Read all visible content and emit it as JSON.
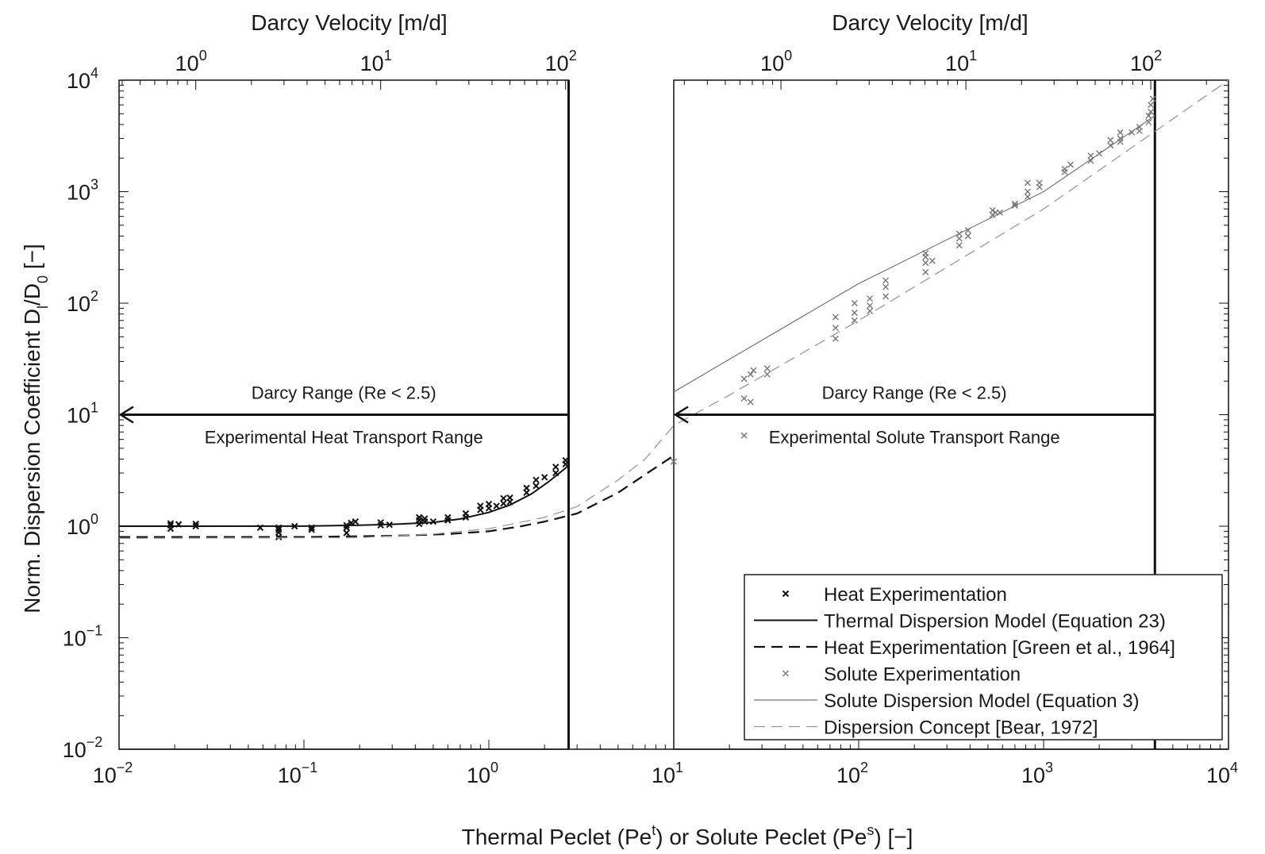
{
  "chart_data": {
    "type": "scatter",
    "x_scale": "log",
    "y_scale": "log",
    "xlabel": {
      "a": "Thermal Peclet (Pe",
      "a_sup": "t",
      "b": ") or Solute Peclet (Pe",
      "b_sup": "s",
      "c": ") [−]"
    },
    "ylabel": {
      "a": "Norm. Dispersion Coefficient D",
      "a_sub": "l",
      "b": "/D",
      "b_sub": "0",
      "c": " [−]"
    },
    "top_xlabel": "Darcy Velocity [m/d]",
    "xlim": [
      0.01,
      10000
    ],
    "ylim": [
      0.01,
      10000
    ],
    "x_ticks": [
      {
        "base": "10",
        "exp": "−2",
        "value": 0.01
      },
      {
        "base": "10",
        "exp": "−1",
        "value": 0.1
      },
      {
        "base": "10",
        "exp": "0",
        "value": 1
      },
      {
        "base": "10",
        "exp": "1",
        "value": 10
      },
      {
        "base": "10",
        "exp": "2",
        "value": 100
      },
      {
        "base": "10",
        "exp": "3",
        "value": 1000
      },
      {
        "base": "10",
        "exp": "4",
        "value": 10000
      }
    ],
    "y_ticks": [
      {
        "base": "10",
        "exp": "−2",
        "value": 0.01
      },
      {
        "base": "10",
        "exp": "−1",
        "value": 0.1
      },
      {
        "base": "10",
        "exp": "0",
        "value": 1
      },
      {
        "base": "10",
        "exp": "1",
        "value": 10
      },
      {
        "base": "10",
        "exp": "2",
        "value": 100
      },
      {
        "base": "10",
        "exp": "3",
        "value": 1000
      },
      {
        "base": "10",
        "exp": "4",
        "value": 10000
      }
    ],
    "panels": [
      {
        "name": "heat",
        "x_range": [
          0.01,
          2.7
        ],
        "top_ticks": [
          {
            "base": "10",
            "exp": "0",
            "pe": 0.026
          },
          {
            "base": "10",
            "exp": "1",
            "pe": 0.26
          },
          {
            "base": "10",
            "exp": "2",
            "pe": 2.6
          }
        ],
        "range_arrow": {
          "y": 10,
          "from_x": 2.7,
          "to_x": 0.01
        },
        "darcy_label": "Darcy Range (Re < 2.5)",
        "range_label": "Experimental Heat Transport Range"
      },
      {
        "name": "solute",
        "x_range": [
          10,
          4000
        ],
        "top_ticks": [
          {
            "base": "10",
            "exp": "0",
            "pe": 38
          },
          {
            "base": "10",
            "exp": "1",
            "pe": 380
          },
          {
            "base": "10",
            "exp": "2",
            "pe": 3800
          }
        ],
        "range_arrow": {
          "y": 10,
          "from_x": 4000,
          "to_x": 10
        },
        "darcy_label": "Darcy Range (Re < 2.5)",
        "range_label": "Experimental Solute Transport Range"
      }
    ],
    "series": [
      {
        "name": "Heat Experimentation",
        "style": "x-marker",
        "color": "#111111",
        "points": [
          [
            0.019,
            1.02
          ],
          [
            0.019,
            0.95
          ],
          [
            0.019,
            1.06
          ],
          [
            0.021,
            1.04
          ],
          [
            0.026,
            1.0
          ],
          [
            0.026,
            1.05
          ],
          [
            0.058,
            0.97
          ],
          [
            0.073,
            0.93
          ],
          [
            0.073,
            0.97
          ],
          [
            0.073,
            0.88
          ],
          [
            0.073,
            0.8
          ],
          [
            0.089,
            1.0
          ],
          [
            0.11,
            0.97
          ],
          [
            0.11,
            0.93
          ],
          [
            0.17,
            0.87
          ],
          [
            0.17,
            0.97
          ],
          [
            0.17,
            1.02
          ],
          [
            0.18,
            1.07
          ],
          [
            0.19,
            1.1
          ],
          [
            0.26,
            1.02
          ],
          [
            0.26,
            1.08
          ],
          [
            0.29,
            1.03
          ],
          [
            0.42,
            1.05
          ],
          [
            0.42,
            1.13
          ],
          [
            0.42,
            1.2
          ],
          [
            0.45,
            1.1
          ],
          [
            0.45,
            1.17
          ],
          [
            0.5,
            1.1
          ],
          [
            0.6,
            1.13
          ],
          [
            0.6,
            1.2
          ],
          [
            0.75,
            1.2
          ],
          [
            0.75,
            1.3
          ],
          [
            0.9,
            1.4
          ],
          [
            0.9,
            1.52
          ],
          [
            1.0,
            1.45
          ],
          [
            1.0,
            1.58
          ],
          [
            1.1,
            1.52
          ],
          [
            1.2,
            1.6
          ],
          [
            1.2,
            1.78
          ],
          [
            1.3,
            1.65
          ],
          [
            1.3,
            1.8
          ],
          [
            1.6,
            2.0
          ],
          [
            1.6,
            2.2
          ],
          [
            1.8,
            2.3
          ],
          [
            1.8,
            2.6
          ],
          [
            2.0,
            2.75
          ],
          [
            2.3,
            3.0
          ],
          [
            2.3,
            3.4
          ],
          [
            2.6,
            3.6
          ],
          [
            2.6,
            3.9
          ]
        ]
      },
      {
        "name": "Thermal Dispersion Model (Equation 23)",
        "style": "solid",
        "color": "#111111",
        "points": [
          [
            0.01,
            1.0
          ],
          [
            0.1,
            1.002
          ],
          [
            0.2,
            1.02
          ],
          [
            0.3,
            1.04
          ],
          [
            0.5,
            1.08
          ],
          [
            0.7,
            1.16
          ],
          [
            1.0,
            1.33
          ],
          [
            1.3,
            1.55
          ],
          [
            1.7,
            1.95
          ],
          [
            2.1,
            2.5
          ],
          [
            2.7,
            3.5
          ]
        ]
      },
      {
        "name": "Heat Experimentation [Green et al., 1964]",
        "style": "dashed",
        "color": "#111111",
        "points": [
          [
            0.01,
            0.8
          ],
          [
            0.1,
            0.8
          ],
          [
            0.3,
            0.82
          ],
          [
            0.6,
            0.85
          ],
          [
            1.0,
            0.9
          ],
          [
            1.5,
            1.0
          ],
          [
            2.0,
            1.1
          ],
          [
            3.0,
            1.3
          ],
          [
            5.0,
            2.0
          ],
          [
            7.0,
            2.9
          ],
          [
            10.0,
            4.3
          ]
        ]
      },
      {
        "name": "Solute Experimentation",
        "style": "x-marker",
        "color": "#777777",
        "points": [
          [
            10,
            3.8
          ],
          [
            24,
            6.5
          ],
          [
            24,
            14
          ],
          [
            24,
            21
          ],
          [
            26,
            13
          ],
          [
            26,
            23
          ],
          [
            27,
            25
          ],
          [
            32,
            23
          ],
          [
            32,
            26
          ],
          [
            75,
            48
          ],
          [
            75,
            60
          ],
          [
            75,
            75
          ],
          [
            95,
            70
          ],
          [
            95,
            82
          ],
          [
            95,
            100
          ],
          [
            115,
            85
          ],
          [
            115,
            95
          ],
          [
            115,
            110
          ],
          [
            140,
            115
          ],
          [
            140,
            140
          ],
          [
            140,
            160
          ],
          [
            230,
            190
          ],
          [
            230,
            230
          ],
          [
            230,
            260
          ],
          [
            230,
            280
          ],
          [
            250,
            240
          ],
          [
            350,
            330
          ],
          [
            350,
            380
          ],
          [
            350,
            420
          ],
          [
            390,
            400
          ],
          [
            390,
            450
          ],
          [
            530,
            620
          ],
          [
            530,
            680
          ],
          [
            550,
            650
          ],
          [
            580,
            650
          ],
          [
            700,
            750
          ],
          [
            700,
            780
          ],
          [
            820,
            900
          ],
          [
            820,
            1000
          ],
          [
            820,
            1200
          ],
          [
            950,
            1100
          ],
          [
            950,
            1200
          ],
          [
            1300,
            1500
          ],
          [
            1300,
            1600
          ],
          [
            1400,
            1750
          ],
          [
            1800,
            1900
          ],
          [
            1800,
            2100
          ],
          [
            2000,
            2200
          ],
          [
            2300,
            2600
          ],
          [
            2300,
            2900
          ],
          [
            2600,
            2800
          ],
          [
            2600,
            3000
          ],
          [
            2600,
            3400
          ],
          [
            3000,
            3400
          ],
          [
            3300,
            3500
          ],
          [
            3300,
            3800
          ],
          [
            3700,
            4200
          ],
          [
            3700,
            4800
          ],
          [
            3800,
            5200
          ],
          [
            3800,
            6000
          ],
          [
            3900,
            6800
          ]
        ]
      },
      {
        "name": "Solute Dispersion Model (Equation 3)",
        "style": "solid-thin",
        "color": "#777777",
        "points": [
          [
            10,
            16
          ],
          [
            100,
            150
          ],
          [
            1000,
            1000
          ],
          [
            4000,
            4800
          ]
        ]
      },
      {
        "name": "Dispersion Concept [Bear, 1972]",
        "style": "dashed-thin",
        "color": "#999999",
        "points": [
          [
            0.01,
            0.78
          ],
          [
            0.2,
            0.79
          ],
          [
            0.5,
            0.85
          ],
          [
            1.0,
            0.95
          ],
          [
            2.0,
            1.2
          ],
          [
            3.0,
            1.5
          ],
          [
            5.0,
            2.6
          ],
          [
            7.0,
            4.0
          ],
          [
            10.0,
            8.0
          ],
          [
            20.0,
            15
          ],
          [
            100.0,
            70
          ],
          [
            1000.0,
            700
          ],
          [
            10000.0,
            10000
          ]
        ]
      }
    ]
  }
}
